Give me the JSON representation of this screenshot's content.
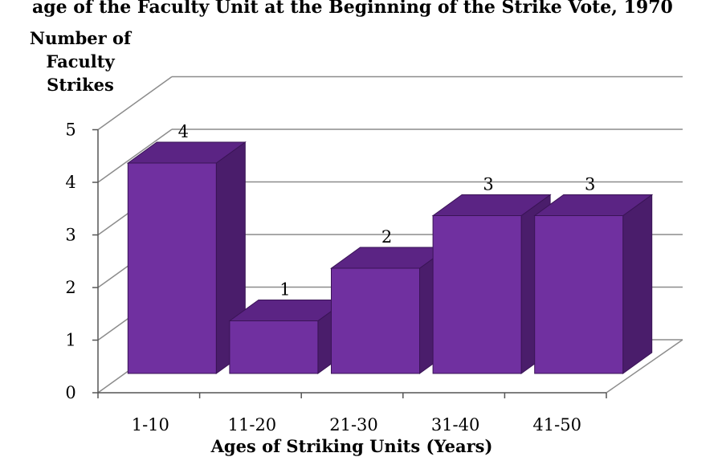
{
  "chart_data": {
    "type": "bar",
    "title": "age of the Faculty Unit at the Beginning of the Strike Vote, 1970",
    "xlabel": "Ages of Striking Units (Years)",
    "ylabel": [
      "Number of",
      "Faculty",
      "Strikes"
    ],
    "categories": [
      "1-10",
      "11-20",
      "21-30",
      "31-40",
      "41-50"
    ],
    "values": [
      4,
      1,
      2,
      3,
      3
    ],
    "ylim": [
      0,
      5
    ],
    "yticks": [
      "0",
      "1",
      "2",
      "3",
      "4",
      "5"
    ],
    "grid": true,
    "legend": "none",
    "colors": {
      "bar_front": "#7030A0",
      "bar_top": "#5B2484",
      "bar_side": "#4A1D6B",
      "bar_edge": "#3A1456",
      "grid": "#8c8c8c",
      "frame": "#555555"
    }
  }
}
